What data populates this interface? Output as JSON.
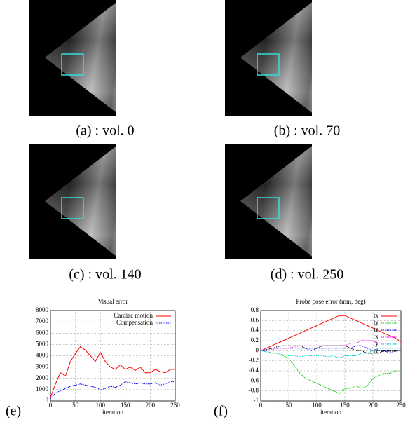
{
  "panels": [
    {
      "caption": "(a) : vol. 0"
    },
    {
      "caption": "(b) : vol. 70"
    },
    {
      "caption": "(c) : vol. 140"
    },
    {
      "caption": "(d) : vol. 250"
    }
  ],
  "chart_data": [
    {
      "type": "line",
      "panel_label": "(e)",
      "title": "Visual error",
      "xlabel": "iteration",
      "xlim": [
        0,
        250
      ],
      "xticks": [
        0,
        50,
        100,
        150,
        200,
        250
      ],
      "ylim": [
        0,
        8000
      ],
      "yticks": [
        0,
        1000,
        2000,
        3000,
        4000,
        5000,
        6000,
        7000,
        8000
      ],
      "grid": true,
      "legend": "upper right",
      "x": [
        0,
        10,
        20,
        30,
        40,
        50,
        60,
        70,
        80,
        90,
        100,
        110,
        120,
        130,
        140,
        150,
        160,
        170,
        180,
        190,
        200,
        210,
        220,
        230,
        240,
        250
      ],
      "series": [
        {
          "name": "Cardiac motion",
          "color": "#ff0000",
          "style": "solid",
          "values": [
            300,
            1500,
            2500,
            2200,
            3500,
            4200,
            4800,
            4500,
            4000,
            3500,
            4300,
            3500,
            3000,
            2800,
            3200,
            2800,
            3000,
            2700,
            3000,
            2500,
            2500,
            2800,
            2600,
            2500,
            2800,
            2800
          ]
        },
        {
          "name": "Compensation",
          "color": "#0000ff",
          "style": "dotted",
          "values": [
            200,
            700,
            900,
            1100,
            1300,
            1400,
            1500,
            1400,
            1300,
            1200,
            1000,
            1100,
            1300,
            1200,
            1400,
            1700,
            1600,
            1500,
            1600,
            1500,
            1500,
            1600,
            1400,
            1500,
            1700,
            1700
          ]
        }
      ]
    },
    {
      "type": "line",
      "panel_label": "(f)",
      "title": "Probe pose error (mm, deg)",
      "xlabel": "iteration",
      "xlim": [
        0,
        250
      ],
      "xticks": [
        0,
        50,
        100,
        150,
        200,
        250
      ],
      "ylim": [
        -1,
        0.8
      ],
      "yticks": [
        -1,
        -0.8,
        -0.6,
        -0.4,
        -0.2,
        0,
        0.2,
        0.4,
        0.6,
        0.8
      ],
      "grid": true,
      "legend": "upper right",
      "x": [
        0,
        10,
        20,
        30,
        40,
        50,
        60,
        70,
        80,
        90,
        100,
        110,
        120,
        130,
        140,
        150,
        160,
        170,
        180,
        190,
        200,
        210,
        220,
        230,
        240,
        250
      ],
      "series": [
        {
          "name": "tx",
          "color": "#ff0000",
          "style": "solid",
          "values": [
            0,
            0.05,
            0.1,
            0.15,
            0.2,
            0.25,
            0.3,
            0.35,
            0.4,
            0.45,
            0.5,
            0.55,
            0.6,
            0.65,
            0.7,
            0.7,
            0.65,
            0.6,
            0.55,
            0.5,
            0.45,
            0.4,
            0.35,
            0.3,
            0.25,
            0.18
          ]
        },
        {
          "name": "ty",
          "color": "#00cc00",
          "style": "dotted",
          "values": [
            0,
            0,
            -0.05,
            -0.05,
            -0.1,
            -0.15,
            -0.3,
            -0.45,
            -0.55,
            -0.6,
            -0.65,
            -0.7,
            -0.75,
            -0.8,
            -0.85,
            -0.75,
            -0.75,
            -0.7,
            -0.75,
            -0.7,
            -0.55,
            -0.5,
            -0.45,
            -0.45,
            -0.4,
            -0.4
          ]
        },
        {
          "name": "tz",
          "color": "#0000ff",
          "style": "dotted",
          "values": [
            0,
            0.02,
            0.05,
            0.05,
            0.05,
            0.05,
            0.05,
            0.05,
            0.05,
            0,
            0.05,
            0.05,
            0.05,
            0.05,
            0.05,
            0.05,
            0.05,
            0.1,
            0.1,
            0.05,
            0,
            0,
            0,
            -0.05,
            0,
            0
          ]
        },
        {
          "name": "rx",
          "color": "#ff00ff",
          "style": "dotted",
          "values": [
            0,
            0,
            0.02,
            0.05,
            0.05,
            0.05,
            0.08,
            0.1,
            0.1,
            0.1,
            0.1,
            0.1,
            0.1,
            0.1,
            0.1,
            0.1,
            0.15,
            0.15,
            0.2,
            0.2,
            0.2,
            0.15,
            0.15,
            0.15,
            0.15,
            0.15
          ]
        },
        {
          "name": "ry",
          "color": "#00cccc",
          "style": "dotted",
          "values": [
            0,
            -0.02,
            -0.05,
            -0.05,
            -0.08,
            -0.1,
            -0.1,
            -0.12,
            -0.1,
            -0.1,
            -0.1,
            -0.1,
            -0.12,
            -0.1,
            -0.15,
            -0.1,
            -0.1,
            -0.1,
            -0.05,
            -0.05,
            0,
            0.05,
            0.05,
            0.05,
            0.05,
            0.05
          ]
        },
        {
          "name": "rz",
          "color": "#000000",
          "style": "dotted",
          "values": [
            0,
            0.02,
            0.05,
            0.08,
            0.1,
            0.1,
            0.1,
            0.1,
            0.05,
            0.05,
            0.05,
            0.1,
            0.1,
            0.1,
            0.1,
            0.1,
            0.05,
            0,
            0,
            -0.05,
            -0.05,
            -0.05,
            0,
            0,
            0,
            0
          ]
        }
      ]
    }
  ]
}
